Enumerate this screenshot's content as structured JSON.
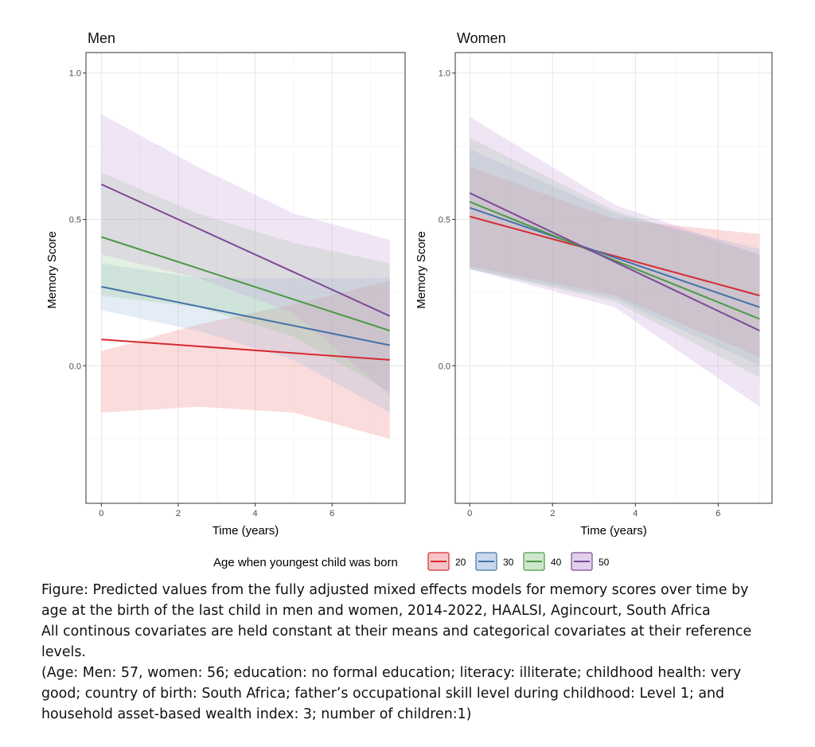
{
  "chart_data": [
    {
      "type": "line",
      "title": "Men",
      "xlabel": "Time (years)",
      "ylabel": "Memory Score",
      "xlim": [
        -0.4,
        7.9
      ],
      "ylim": [
        -0.47,
        1.07
      ],
      "xticks": [
        0,
        2,
        4,
        6
      ],
      "yticks": [
        0.0,
        0.5,
        1.0
      ],
      "ytick_labels": [
        "0.0",
        "0.5",
        "1.0"
      ],
      "grid": true,
      "series": [
        {
          "name": "20",
          "color": "#d62a32",
          "x": [
            0,
            7.5
          ],
          "y": [
            0.09,
            0.02
          ],
          "band_x": [
            0,
            2.5,
            5,
            7.5
          ],
          "band_lower": [
            -0.16,
            -0.14,
            -0.16,
            -0.25
          ],
          "band_upper": [
            0.05,
            0.14,
            0.21,
            0.29
          ]
        },
        {
          "name": "30",
          "color": "#4672a8",
          "x": [
            0,
            7.5
          ],
          "y": [
            0.27,
            0.07
          ],
          "band_x": [
            0,
            2.5,
            5,
            7.5
          ],
          "band_lower": [
            0.19,
            0.12,
            0.02,
            -0.16
          ],
          "band_upper": [
            0.35,
            0.3,
            0.3,
            0.3
          ]
        },
        {
          "name": "40",
          "color": "#4a9a46",
          "x": [
            0,
            7.5
          ],
          "y": [
            0.44,
            0.12
          ],
          "band_x": [
            0,
            2.5,
            5,
            7.5
          ],
          "band_lower": [
            0.24,
            0.2,
            0.1,
            -0.09
          ],
          "band_upper": [
            0.66,
            0.52,
            0.42,
            0.35
          ]
        },
        {
          "name": "50",
          "color": "#7d4a96",
          "x": [
            0,
            7.5
          ],
          "y": [
            0.62,
            0.17
          ],
          "band_x": [
            0,
            2.5,
            5,
            7.5
          ],
          "band_lower": [
            0.38,
            0.3,
            0.18,
            -0.1
          ],
          "band_upper": [
            0.86,
            0.68,
            0.52,
            0.43
          ]
        }
      ]
    },
    {
      "type": "line",
      "title": "Women",
      "xlabel": "Time (years)",
      "ylabel": "Memory Score",
      "xlim": [
        -0.35,
        7.3
      ],
      "ylim": [
        -0.47,
        1.07
      ],
      "xticks": [
        0,
        2,
        4,
        6
      ],
      "yticks": [
        0.0,
        0.5,
        1.0
      ],
      "ytick_labels": [
        "0.0",
        "0.5",
        "1.0"
      ],
      "grid": true,
      "series": [
        {
          "name": "20",
          "color": "#d62a32",
          "x": [
            0,
            7
          ],
          "y": [
            0.51,
            0.24
          ],
          "band_x": [
            0,
            3.5,
            7
          ],
          "band_lower": [
            0.34,
            0.24,
            0.03
          ],
          "band_upper": [
            0.68,
            0.5,
            0.45
          ]
        },
        {
          "name": "30",
          "color": "#4672a8",
          "x": [
            0,
            7
          ],
          "y": [
            0.54,
            0.2
          ],
          "band_x": [
            0,
            3.5,
            7
          ],
          "band_lower": [
            0.33,
            0.23,
            0.0
          ],
          "band_upper": [
            0.74,
            0.52,
            0.4
          ]
        },
        {
          "name": "40",
          "color": "#4a9a46",
          "x": [
            0,
            7
          ],
          "y": [
            0.56,
            0.16
          ],
          "band_x": [
            0,
            3.5,
            7
          ],
          "band_lower": [
            0.33,
            0.22,
            -0.04
          ],
          "band_upper": [
            0.78,
            0.53,
            0.38
          ]
        },
        {
          "name": "50",
          "color": "#7d4a96",
          "x": [
            0,
            7
          ],
          "y": [
            0.59,
            0.12
          ],
          "band_x": [
            0,
            3.5,
            7
          ],
          "band_lower": [
            0.33,
            0.2,
            -0.14
          ],
          "band_upper": [
            0.85,
            0.55,
            0.38
          ]
        }
      ]
    }
  ],
  "legend": {
    "title": "Age when youngest child was born",
    "placement": "bottom",
    "items": [
      {
        "label": "20",
        "color": "#d62a32",
        "fill": "#f6c4c6"
      },
      {
        "label": "30",
        "color": "#4672a8",
        "fill": "#c9d9ec"
      },
      {
        "label": "40",
        "color": "#4a9a46",
        "fill": "#cfe6cd"
      },
      {
        "label": "50",
        "color": "#7d4a96",
        "fill": "#e1d0ea"
      }
    ]
  },
  "band_colors": [
    "#f08080",
    "#9dbbe0",
    "#9ccc98",
    "#c9a2dc"
  ],
  "caption": {
    "line1": "Figure: Predicted values from the fully adjusted mixed effects models for memory scores over time by age at the birth of the last child in men and women, 2014-2022, HAALSI, Agincourt, South Africa",
    "line2": "All continous covariates are held constant at their means and categorical covariates at their reference levels.",
    "line3": "(Age: Men: 57, women: 56; education: no formal education; literacy: illiterate; childhood health: very good; country of birth: South Africa; father’s occupational skill level during childhood: Level 1; and household asset-based wealth index: 3; number of children:1)"
  }
}
